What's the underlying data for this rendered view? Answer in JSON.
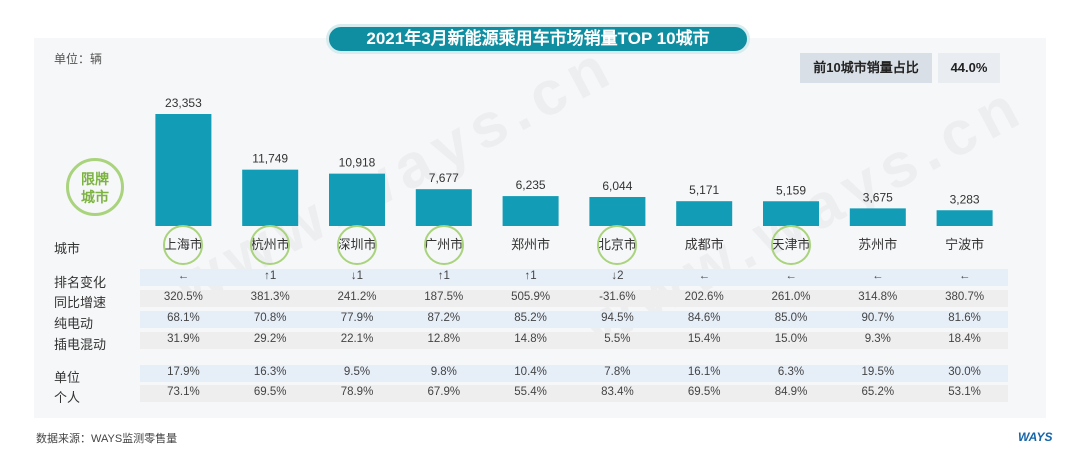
{
  "title": "2021年3月新能源乘用车市场销量TOP 10城市",
  "unit": "单位：辆",
  "share": {
    "label": "前10城市销量占比",
    "value": "44.0%"
  },
  "badge": [
    "限牌",
    "城市"
  ],
  "watermark": "www.ways.cn",
  "colors": {
    "bar": "#129cb5",
    "title_bg": "#0f8ea1",
    "badge": "#7cb342",
    "row_blue": "#e6eef8",
    "row_gray": "#eeeeee"
  },
  "row_labels": {
    "city": "城市",
    "rank": "排名变化",
    "yoy": "同比增速",
    "bev": "纯电动",
    "phev": "插电混动",
    "org": "单位",
    "personal": "个人"
  },
  "chart_data": {
    "type": "bar",
    "categories": [
      "上海市",
      "杭州市",
      "深圳市",
      "广州市",
      "郑州市",
      "北京市",
      "成都市",
      "天津市",
      "苏州市",
      "宁波市"
    ],
    "values": [
      23353,
      11749,
      10918,
      7677,
      6235,
      6044,
      5171,
      5159,
      3675,
      3283
    ],
    "value_labels": [
      "23,353",
      "11,749",
      "10,918",
      "7,677",
      "6,235",
      "6,044",
      "5,171",
      "5,159",
      "3,675",
      "3,283"
    ],
    "ylabel": "单位：辆",
    "restricted_cities": [
      "上海市",
      "杭州市",
      "深圳市",
      "广州市",
      "北京市",
      "天津市"
    ]
  },
  "table": {
    "rank": [
      "←",
      "↑1",
      "↓1",
      "↑1",
      "↑1",
      "↓2",
      "←",
      "←",
      "←",
      "←"
    ],
    "yoy": [
      "320.5%",
      "381.3%",
      "241.2%",
      "187.5%",
      "505.9%",
      "-31.6%",
      "202.6%",
      "261.0%",
      "314.8%",
      "380.7%"
    ],
    "bev": [
      "68.1%",
      "70.8%",
      "77.9%",
      "87.2%",
      "85.2%",
      "94.5%",
      "84.6%",
      "85.0%",
      "90.7%",
      "81.6%"
    ],
    "phev": [
      "31.9%",
      "29.2%",
      "22.1%",
      "12.8%",
      "14.8%",
      "5.5%",
      "15.4%",
      "15.0%",
      "9.3%",
      "18.4%"
    ],
    "org": [
      "17.9%",
      "16.3%",
      "9.5%",
      "9.8%",
      "10.4%",
      "7.8%",
      "16.1%",
      "6.3%",
      "19.5%",
      "30.0%"
    ],
    "personal": [
      "73.1%",
      "69.5%",
      "78.9%",
      "67.9%",
      "55.4%",
      "83.4%",
      "69.5%",
      "84.9%",
      "65.2%",
      "53.1%"
    ]
  },
  "source": "数据来源：WAYS监测零售量",
  "logo": "WAYS"
}
